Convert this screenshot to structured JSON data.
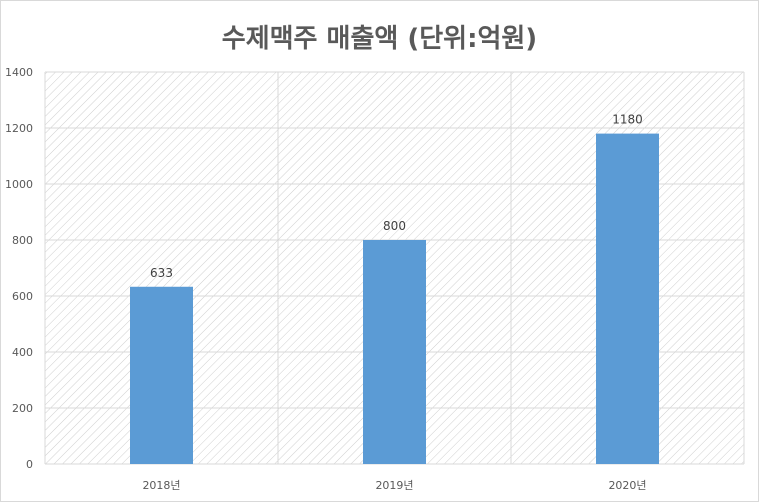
{
  "chart_data": {
    "type": "bar",
    "title": "수제맥주 매출액 (단위:억원)",
    "categories": [
      "2018년",
      "2019년",
      "2020년"
    ],
    "values": [
      633,
      800,
      1180
    ],
    "data_labels": [
      "633",
      "800",
      "1180"
    ],
    "ylim": [
      0,
      1400
    ],
    "y_ticks": [
      "0",
      "200",
      "400",
      "600",
      "800",
      "1000",
      "1200",
      "1400"
    ],
    "xlabel": "",
    "ylabel": "",
    "grid": true,
    "legend": "none",
    "colors": {
      "bar": "#5b9bd5",
      "grid": "#d9d9d9",
      "text": "#595959",
      "hatch": "#c8c8c8"
    }
  }
}
